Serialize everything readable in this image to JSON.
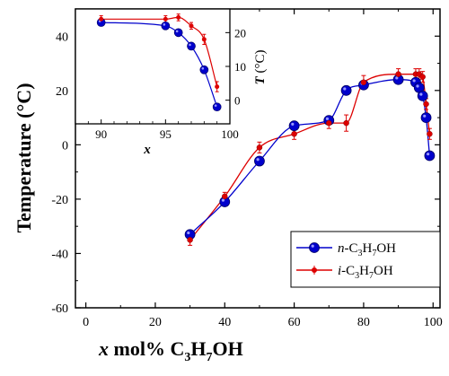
{
  "chart_data": [
    {
      "type": "line",
      "xlabel": {
        "var": "x",
        "unit": "mol%",
        "formula_parts": [
          "C",
          "3",
          "H",
          "7",
          "OH"
        ]
      },
      "ylabel": "Temperature  (°C)",
      "xlim": [
        -3,
        102
      ],
      "ylim": [
        -60,
        50
      ],
      "xticks": [
        0,
        20,
        40,
        60,
        80,
        100
      ],
      "yticks": [
        -60,
        -40,
        -20,
        0,
        20,
        40
      ],
      "xtick_labels": [
        "0",
        "20",
        "40",
        "60",
        "80",
        "100"
      ],
      "ytick_labels": [
        "-60",
        "-40",
        "-20",
        "0",
        "20",
        "40"
      ],
      "legend_position": "lower-right",
      "series": [
        {
          "name": {
            "prefix": "n",
            "parts": [
              "-C",
              "3",
              "H",
              "7",
              "OH"
            ]
          },
          "color": "#0000cc",
          "marker": "circle-large",
          "x": [
            30,
            40,
            50,
            60,
            70,
            75,
            80,
            90,
            95,
            96,
            97,
            98,
            99
          ],
          "y": [
            -33,
            -21,
            -6,
            7,
            9,
            20,
            22,
            24,
            23,
            21,
            18,
            10,
            -4
          ]
        },
        {
          "name": {
            "prefix": "i",
            "parts": [
              "-C",
              "3",
              "H",
              "7",
              "OH"
            ]
          },
          "color": "#dd0000",
          "marker": "circle-small",
          "x": [
            30,
            40,
            50,
            60,
            70,
            75,
            80,
            90,
            95,
            96,
            97,
            98,
            99
          ],
          "y": [
            -35,
            -19,
            -1,
            4,
            8,
            8,
            23,
            26,
            26,
            26,
            25,
            15,
            4
          ],
          "yerr": [
            2,
            1.5,
            2,
            2,
            2,
            3,
            2.5,
            2,
            2,
            2,
            2,
            2,
            2
          ]
        }
      ]
    },
    {
      "type": "line",
      "xlabel": "x",
      "ylabel": {
        "var": "T",
        "unit": "(°C)"
      },
      "xlim": [
        88,
        100
      ],
      "ylim": [
        -7,
        27
      ],
      "xticks": [
        90,
        95,
        100
      ],
      "yticks": [
        0,
        10,
        20
      ],
      "xtick_labels": [
        "90",
        "95",
        "100"
      ],
      "ytick_labels": [
        "0",
        "10",
        "20"
      ],
      "series": [
        {
          "name": "n",
          "color": "#0000cc",
          "x": [
            90,
            95,
            96,
            97,
            98,
            99
          ],
          "y": [
            23,
            22,
            20,
            16,
            9,
            -2
          ]
        },
        {
          "name": "i",
          "color": "#dd0000",
          "x": [
            90,
            95,
            96,
            97,
            98,
            99
          ],
          "y": [
            24,
            24,
            24.5,
            22,
            18,
            4
          ],
          "yerr": [
            1,
            1,
            1,
            1,
            1.5,
            1.5
          ]
        }
      ]
    }
  ]
}
